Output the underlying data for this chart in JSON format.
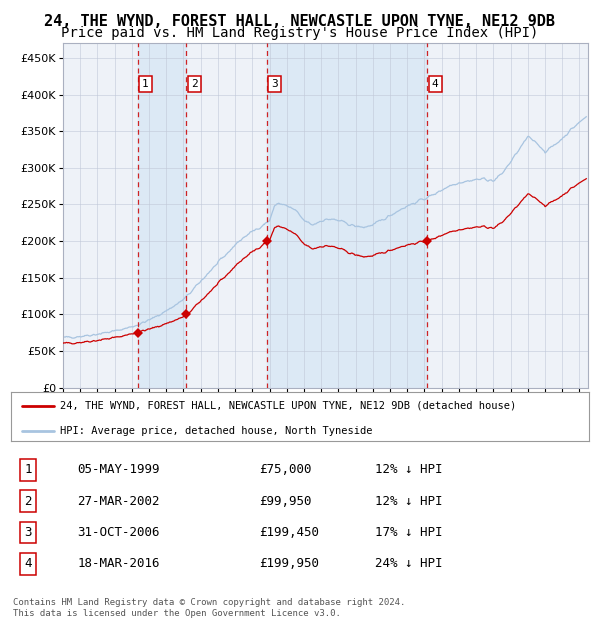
{
  "title": "24, THE WYND, FOREST HALL, NEWCASTLE UPON TYNE, NE12 9DB",
  "subtitle": "Price paid vs. HM Land Registry's House Price Index (HPI)",
  "ylim": [
    0,
    470000
  ],
  "yticks": [
    0,
    50000,
    100000,
    150000,
    200000,
    250000,
    300000,
    350000,
    400000,
    450000
  ],
  "hpi_color": "#a8c4e0",
  "price_color": "#cc0000",
  "vline_color": "#cc0000",
  "shade_color": "#dce9f5",
  "background_color": "#eef2f8",
  "sale_time_vals": [
    1999.333,
    2002.167,
    2006.833,
    2016.167
  ],
  "sale_prices": [
    75000,
    99950,
    199450,
    199950
  ],
  "sale_labels": [
    "1",
    "2",
    "3",
    "4"
  ],
  "legend_property": "24, THE WYND, FOREST HALL, NEWCASTLE UPON TYNE, NE12 9DB (detached house)",
  "legend_hpi": "HPI: Average price, detached house, North Tyneside",
  "table_rows": [
    [
      "1",
      "05-MAY-1999",
      "£75,000",
      "12% ↓ HPI"
    ],
    [
      "2",
      "27-MAR-2002",
      "£99,950",
      "12% ↓ HPI"
    ],
    [
      "3",
      "31-OCT-2006",
      "£199,450",
      "17% ↓ HPI"
    ],
    [
      "4",
      "18-MAR-2016",
      "£199,950",
      "24% ↓ HPI"
    ]
  ],
  "footnote": "Contains HM Land Registry data © Crown copyright and database right 2024.\nThis data is licensed under the Open Government Licence v3.0.",
  "hpi_key_x": [
    1995.0,
    1995.5,
    1996.0,
    1996.5,
    1997.0,
    1997.5,
    1998.0,
    1998.5,
    1999.0,
    1999.5,
    2000.0,
    2000.5,
    2001.0,
    2001.5,
    2002.0,
    2002.5,
    2003.0,
    2003.5,
    2004.0,
    2004.5,
    2005.0,
    2005.5,
    2006.0,
    2006.5,
    2007.0,
    2007.3,
    2007.5,
    2008.0,
    2008.5,
    2009.0,
    2009.5,
    2010.0,
    2010.5,
    2011.0,
    2011.5,
    2012.0,
    2012.5,
    2013.0,
    2013.5,
    2014.0,
    2014.5,
    2015.0,
    2015.5,
    2016.0,
    2016.5,
    2017.0,
    2017.5,
    2018.0,
    2018.5,
    2019.0,
    2019.5,
    2020.0,
    2020.5,
    2021.0,
    2021.5,
    2022.0,
    2022.5,
    2023.0,
    2023.5,
    2024.0,
    2024.5,
    2025.4
  ],
  "hpi_key_y": [
    68000,
    69000,
    70000,
    71500,
    73000,
    75000,
    77000,
    80000,
    83000,
    87000,
    92000,
    98000,
    105000,
    112000,
    120000,
    132000,
    145000,
    158000,
    170000,
    182000,
    195000,
    205000,
    213000,
    220000,
    228000,
    248000,
    252000,
    248000,
    242000,
    228000,
    222000,
    228000,
    230000,
    228000,
    224000,
    220000,
    219000,
    222000,
    228000,
    235000,
    242000,
    248000,
    253000,
    258000,
    263000,
    270000,
    276000,
    280000,
    282000,
    284000,
    285000,
    282000,
    292000,
    308000,
    325000,
    342000,
    335000,
    322000,
    330000,
    340000,
    352000,
    370000
  ],
  "title_fontsize": 11,
  "subtitle_fontsize": 10,
  "xlim": [
    1995.0,
    2025.5
  ]
}
